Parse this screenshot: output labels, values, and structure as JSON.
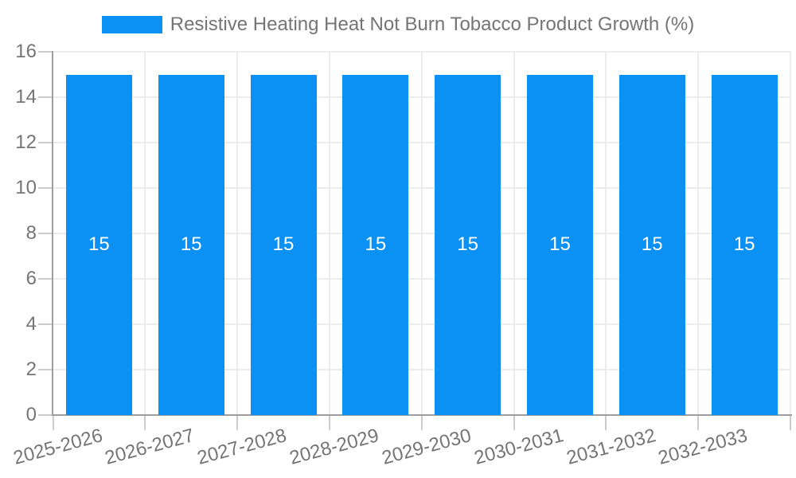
{
  "chart_data": {
    "type": "bar",
    "title": "",
    "legend": "Resistive Heating Heat Not Burn Tobacco Product Growth (%)",
    "legend_position": "top",
    "categories": [
      "2025-2026",
      "2026-2027",
      "2027-2028",
      "2028-2029",
      "2029-2030",
      "2030-2031",
      "2031-2032",
      "2032-2033"
    ],
    "values": [
      15,
      15,
      15,
      15,
      15,
      15,
      15,
      15
    ],
    "xlabel": "",
    "ylabel": "",
    "ylim": [
      0,
      16
    ],
    "yticks": [
      0,
      2,
      4,
      6,
      8,
      10,
      12,
      14,
      16
    ],
    "grid": true,
    "x_label_rotation_deg": -15,
    "colors": {
      "bar": "#0b90f4",
      "text": "#757575",
      "grid": "#ececec",
      "axis": "#9e9e9e",
      "tick": "#cccccc",
      "value_label": "#ffffff",
      "background": "#ffffff"
    }
  }
}
